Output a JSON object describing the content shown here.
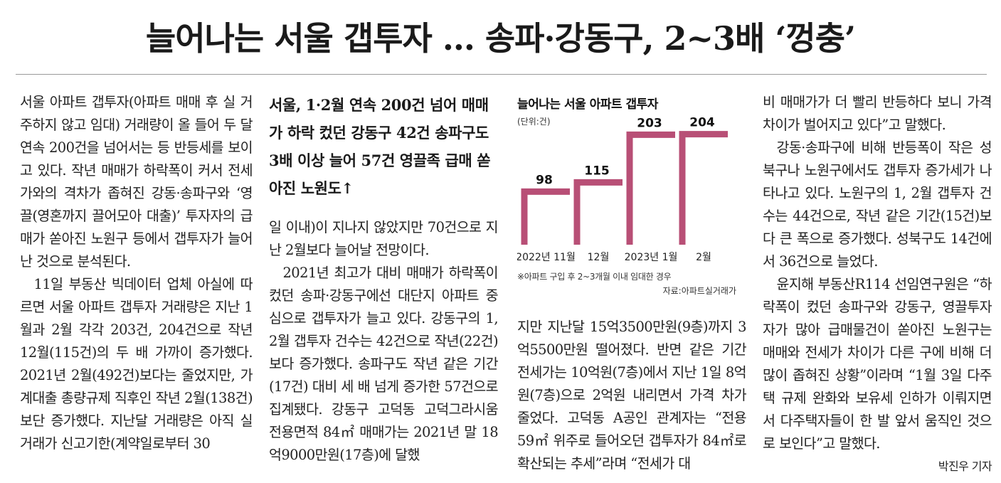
{
  "headline": "늘어나는 서울 갭투자 … 송파·강동구, 2~3배 ‘껑충’",
  "col1": [
    "서울 아파트 갭투자(아파트 매매 후 실 거주하지 않고 임대) 거래량이 올 들어 두 달 연속 200건을 넘어서는 등 반등세를 보이고 있다. 작년 매매가 하락폭이 커서 전세가와의 격차가 좁혀진 강동·송파구와 ‘영끌(영혼까지 끌어모아 대출)’ 투자자의 급매가 쏟아진 노원구 등에서 갭투자가 늘어난 것으로 분석된다.",
    "11일 부동산 빅데이터 업체 아실에 따르면 서울 아파트 갭투자 거래량은 지난 1월과 2월 각각 203건, 204건으로 작년 12월(115건)의 두 배 가까이 증가했다. 2021년 2월(492건)보다는 줄었지만, 가계대출 총량규제 직후인 작년 2월(138건)보단 증가했다. 지난달 거래량은 아직 실거래가 신고기한(계약일로부터 30"
  ],
  "subhead": "서울, 1·2월 연속 200건 넘어 매매가 하락 컸던 강동구 42건 송파구도 3배 이상 늘어 57건 영끌족 급매 쏟아진 노원도↑",
  "col2": [
    "일 이내)이 지나지 않았지만 70건으로 지난 2월보다 늘어날 전망이다.",
    "2021년 최고가 대비 매매가 하락폭이 컸던 송파·강동구에선 대단지 아파트 중심으로 갭투자가 늘고 있다. 강동구의 1, 2월 갭투자 건수는 42건으로 작년(22건)보다 증가했다. 송파구도 작년 같은 기간(17건) 대비 세 배 넘게 증가한 57건으로 집계됐다. 강동구 고덕동 고덕그라시움 전용면적 84㎡ 매매가는 2021년 말 18억9000만원(17층)에 달했"
  ],
  "col3": [
    "지만 지난달 15억3500만원(9층)까지 3억5500만원 떨어졌다. 반면 같은 기간 전세가는 10억원(7층)에서 지난 1일 8억원(7층)으로 2억원 내리면서 가격 차가 줄었다. 고덕동 A공인 관계자는 “전용 59㎡ 위주로 들어오던 갭투자가 84㎡로 확산되는 추세”라며 “전세가 대"
  ],
  "col4": [
    "비 매매가가 더 빨리 반등하다 보니 가격 차이가 벌어지고 있다”고 말했다.",
    "강동·송파구에 비해 반등폭이 작은 성북구나 노원구에서도 갭투자 증가세가 나타나고 있다. 노원구의 1, 2월 갭투자 건수는 44건으로, 작년 같은 기간(15건)보다 큰 폭으로 증가했다. 성북구도 14건에서 36건으로 늘었다.",
    "윤지해 부동산R114 선임연구원은 “하락폭이 컸던 송파구와 강동구, 영끌투자자가 많아 급매물건이 쏟아진 노원구는 매매와 전세가 차이가 다른 구에 비해 더 많이 좁혀진 상황”이라며 “1월 3일 다주택 규제 완화와 보유세 인하가 이뤄지면서 다주택자들이 한 발 앞서 움직인 것으로 보인다”고 말했다."
  ],
  "byline": "박진우 기자",
  "chart_data": {
    "type": "bar",
    "title": "늘어나는 서울 아파트 갭투자",
    "unit": "(단위:건)",
    "categories": [
      "2022년 11월",
      "12월",
      "2023년 1월",
      "2월"
    ],
    "values": [
      98,
      115,
      203,
      204
    ],
    "ylim": [
      0,
      210
    ],
    "color": "#b84f76",
    "note": "※아파트 구입 후 2~3개월 이내 임대한 경우",
    "source": "자료:아파트실거래가"
  }
}
